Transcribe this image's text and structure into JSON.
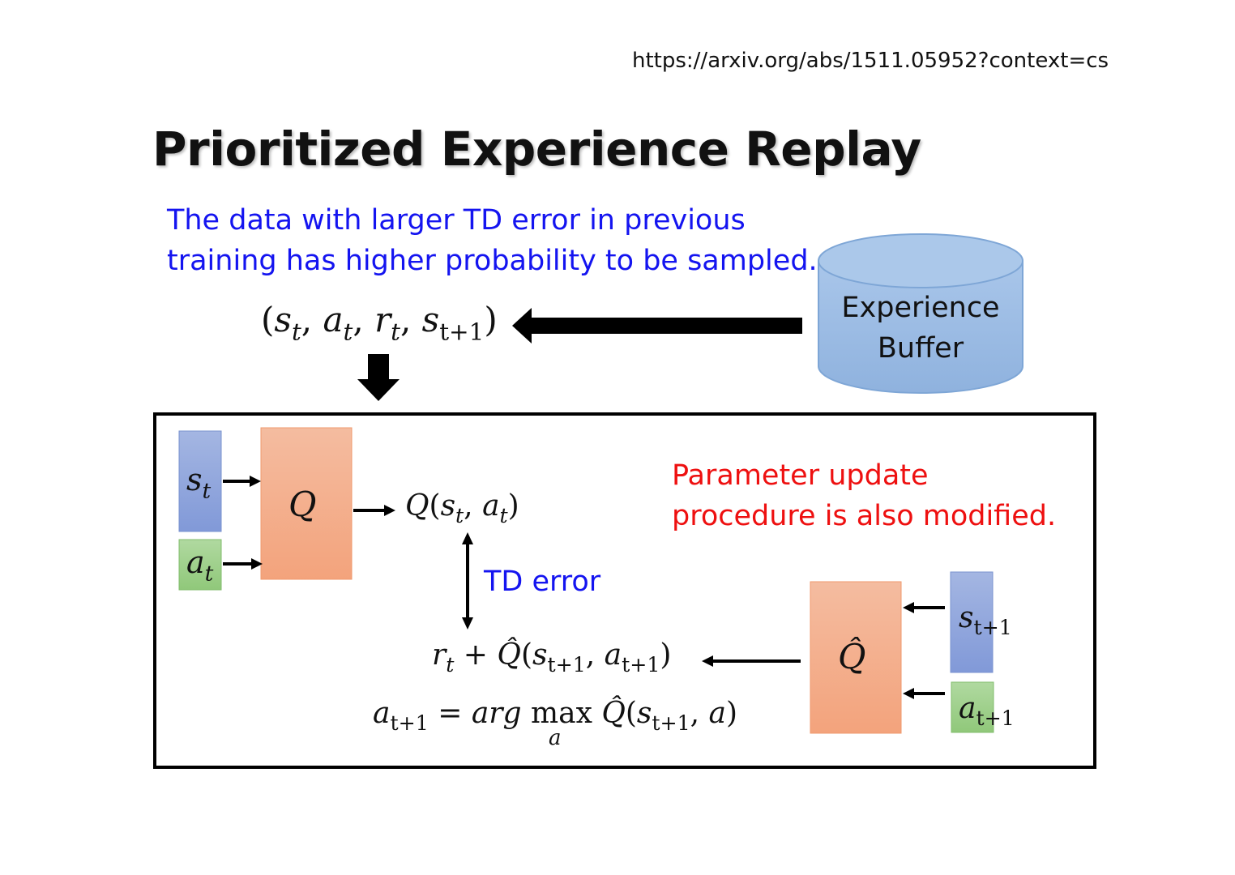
{
  "url": "https://arxiv.org/abs/1511.05952?context=cs",
  "title": "Prioritized Experience Replay",
  "description": [
    "The data with larger TD error in previous",
    "training has higher probability to be sampled."
  ],
  "tuple": {
    "open": "(",
    "s": "s",
    "t": "t",
    "a": "a",
    "r": "r",
    "t1": "t+1",
    "comma": ",",
    "close": ")"
  },
  "buffer": {
    "line1": "Experience",
    "line2": "Buffer"
  },
  "network": {
    "q": "Q",
    "q_hat": "Q̂",
    "s": "s",
    "a": "a",
    "t": "t",
    "t1": "t+1"
  },
  "q_output": "Q(s_t, a_t)",
  "td_error": "TD error",
  "target": {
    "r": "r",
    "plus": "+",
    "qhat": "Q̂",
    "args": "(s_{t+1}, a_{t+1})"
  },
  "argmax": {
    "lhs": "a",
    "eq": "=",
    "arg": "arg",
    "max": "max",
    "under": "a",
    "qhat": "Q̂"
  },
  "note": [
    "Parameter update",
    "procedure is also modified."
  ],
  "colors": {
    "blue_text": "#1414f0",
    "red_text": "#ee1010",
    "state_box": "#8fa8de",
    "action_box": "#9fd08a",
    "q_box": "#f4a886",
    "buffer": "#a3c4e8"
  }
}
